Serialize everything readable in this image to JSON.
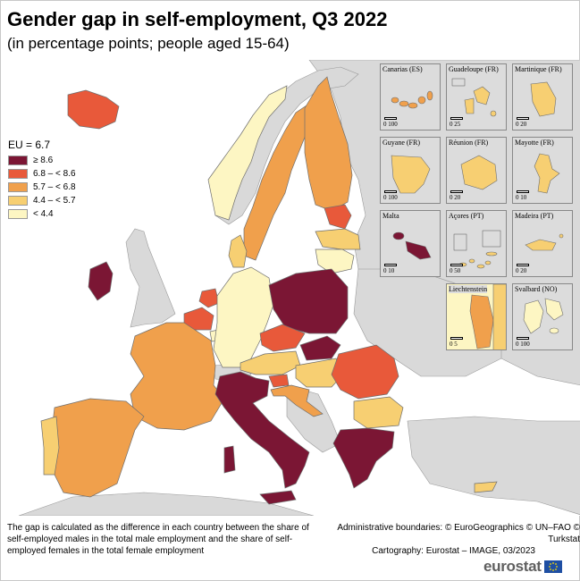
{
  "title": "Gender gap in self-employment, Q3 2022",
  "subtitle": "(in percentage points; people aged 15-64)",
  "legend": {
    "eu_label": "EU = 6.7",
    "classes": [
      {
        "label": "≥ 8.6",
        "color": "#7b1634"
      },
      {
        "label": "6.8 – < 8.6",
        "color": "#e8593a"
      },
      {
        "label": "5.7 – < 6.8",
        "color": "#f0a04c"
      },
      {
        "label": "4.4 – < 5.7",
        "color": "#f7cf72"
      },
      {
        "label": "< 4.4",
        "color": "#fdf6c3"
      }
    ]
  },
  "colors": {
    "sea": "#ffffff",
    "non_eu_land": "#d9d9d9",
    "border": "#6e6e6e"
  },
  "insets": [
    {
      "name": "Canarias (ES)",
      "scale": "0     100"
    },
    {
      "name": "Guadeloupe (FR)",
      "scale": "0   25"
    },
    {
      "name": "Martinique (FR)",
      "scale": "0   20"
    },
    {
      "name": "Guyane (FR)",
      "scale": "0   100"
    },
    {
      "name": "Réunion (FR)",
      "scale": "0   20"
    },
    {
      "name": "Mayotte (FR)",
      "scale": "0   10"
    },
    {
      "name": "Malta",
      "scale": "0   10"
    },
    {
      "name": "Açores (PT)",
      "scale": "0   50"
    },
    {
      "name": "Madeira (PT)",
      "scale": "0   20"
    },
    {
      "name": "Liechtenstein",
      "scale": "0   5"
    },
    {
      "name": "Svalbard (NO)",
      "scale": "0   100"
    }
  ],
  "footnote": "The gap is calculated as the difference in each country between the share of self-employed males in the total male employment and the share of self-employed females in the total female employment",
  "credits": {
    "line1": "Administrative boundaries: © EuroGeographics © UN–FAO © Turkstat",
    "line2": "Cartography: Eurostat – IMAGE, 03/2023"
  },
  "brand": "eurostat"
}
